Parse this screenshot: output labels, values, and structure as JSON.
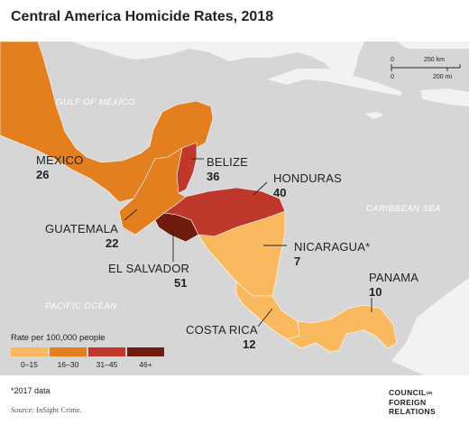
{
  "title": "Central America Homicide Rates, 2018",
  "colors": {
    "sea": "#d6d6d6",
    "land": "#f2f2f2",
    "border": "#ffffff",
    "bin_0_15": "#fbb95f",
    "bin_16_30": "#e37f1f",
    "bin_31_45": "#c0372c",
    "bin_46_plus": "#6e1c0d"
  },
  "sea_labels": {
    "gulf": "GULF OF MEXICO",
    "caribbean": "CARIBBEAN SEA",
    "pacific": "PACIFIC OCEAN"
  },
  "countries": {
    "mexico": {
      "name": "MEXICO",
      "rate": "26",
      "bin": "16-30"
    },
    "belize": {
      "name": "BELIZE",
      "rate": "36",
      "bin": "31-45"
    },
    "honduras": {
      "name": "HONDURAS",
      "rate": "40",
      "bin": "31-45"
    },
    "guatemala": {
      "name": "GUATEMALA",
      "rate": "22",
      "bin": "16-30"
    },
    "nicaragua": {
      "name": "NICARAGUA*",
      "rate": "7",
      "bin": "0-15"
    },
    "el_salvador": {
      "name": "EL SALVADOR",
      "rate": "51",
      "bin": "46+"
    },
    "panama": {
      "name": "PANAMA",
      "rate": "10",
      "bin": "0-15"
    },
    "costa_rica": {
      "name": "COSTA RICA",
      "rate": "12",
      "bin": "0-15"
    }
  },
  "scale": {
    "zero_top": "0",
    "km": "250 km",
    "zero_bottom": "0",
    "mi": "200 mi"
  },
  "legend": {
    "title": "Rate per 100,000 people",
    "bins": [
      {
        "label": "0–15",
        "color": "#fbb95f"
      },
      {
        "label": "16–30",
        "color": "#e37f1f"
      },
      {
        "label": "31–45",
        "color": "#c0372c"
      },
      {
        "label": "46+",
        "color": "#6e1c0d"
      }
    ]
  },
  "footnote": "*2017 data",
  "source": {
    "label": "Source:",
    "text": "InSight Crime."
  },
  "logo": {
    "line1": "COUNCIL",
    "line1_small": "ON",
    "line2": "FOREIGN",
    "line3": "RELATIONS"
  }
}
